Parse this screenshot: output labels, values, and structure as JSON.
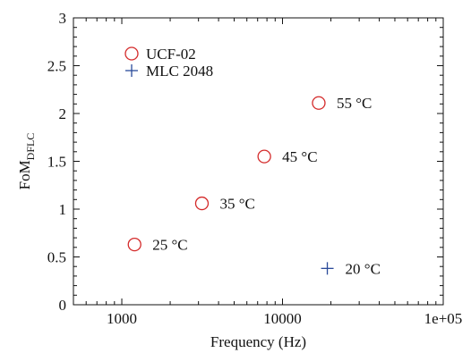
{
  "chart_data": {
    "type": "scatter",
    "xscale": "log",
    "xlim": [
      500,
      100000
    ],
    "ylim": [
      0,
      3
    ],
    "xlabel": "Frequency (Hz)",
    "ylabel": {
      "main": "FoM",
      "sub": "DFLC"
    },
    "xticks": [
      {
        "value": 1000,
        "label": "1000"
      },
      {
        "value": 10000,
        "label": "10000"
      },
      {
        "value": 100000,
        "label": "1e+05"
      }
    ],
    "yticks": [
      {
        "value": 0,
        "label": "0"
      },
      {
        "value": 0.5,
        "label": "0.5"
      },
      {
        "value": 1,
        "label": "1"
      },
      {
        "value": 1.5,
        "label": "1.5"
      },
      {
        "value": 2,
        "label": "2"
      },
      {
        "value": 2.5,
        "label": "2.5"
      },
      {
        "value": 3,
        "label": "3"
      }
    ],
    "series": [
      {
        "name": "UCF-02",
        "marker": "circle",
        "color": "#d42a2a",
        "points": [
          {
            "x": 1200,
            "y": 0.63,
            "label": "25 °C"
          },
          {
            "x": 3150,
            "y": 1.06,
            "label": "35 °C"
          },
          {
            "x": 7700,
            "y": 1.55,
            "label": "45 °C"
          },
          {
            "x": 16800,
            "y": 2.11,
            "label": "55 °C"
          }
        ]
      },
      {
        "name": "MLC 2048",
        "marker": "plus",
        "color": "#2a4a9a",
        "points": [
          {
            "x": 19000,
            "y": 0.38,
            "label": "20 °C"
          }
        ]
      }
    ],
    "legend": "top-left",
    "grid": false
  }
}
